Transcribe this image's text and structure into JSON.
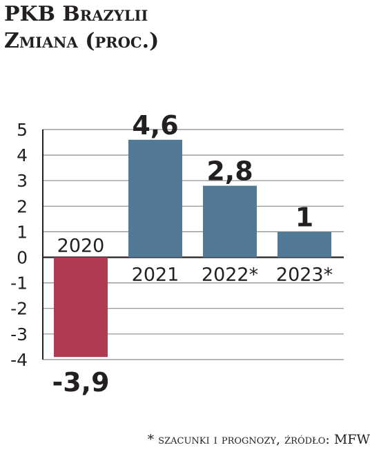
{
  "header": {
    "title": "PKB Brazylii",
    "subtitle": "Zmiana (proc.)"
  },
  "chart_data": {
    "type": "bar",
    "categories": [
      "2020",
      "2021",
      "2022*",
      "2023*"
    ],
    "values": [
      -3.9,
      4.6,
      2.8,
      1
    ],
    "value_labels": [
      "-3,9",
      "4,6",
      "2,8",
      "1"
    ],
    "ylim": [
      -4,
      5
    ],
    "yticks": [
      5,
      4,
      3,
      2,
      1,
      0,
      -1,
      -2,
      -3,
      -4
    ],
    "ytick_labels": [
      "5",
      "4",
      "3",
      "2",
      "1",
      "0",
      "-1",
      "-2",
      "-3",
      "-4"
    ],
    "grid": true,
    "colors": {
      "positive": "#527a96",
      "negative": "#b23a52"
    }
  },
  "footnote": "* szacunki i prognozy, źródło: MFW"
}
